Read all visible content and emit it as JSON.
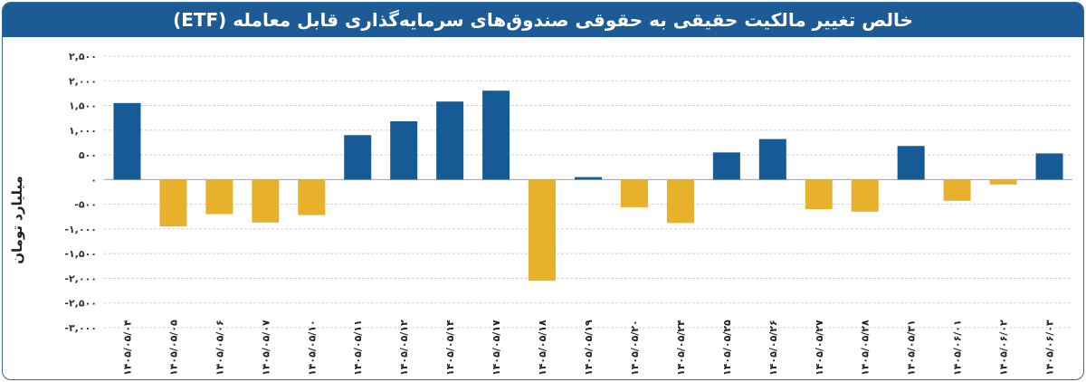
{
  "header": {
    "title": "خالص تغییر مالکیت حقیقی به حقوقی صندوق‌های سرمایه‌گذاری قابل معامله (ETF)"
  },
  "colors": {
    "header_bg": "#1c5b96",
    "positive": "#165b95",
    "negative": "#e8b12c",
    "grid": "#cfd3d8"
  },
  "chart_data": {
    "type": "bar",
    "title": "خالص تغییر مالکیت حقیقی به حقوقی صندوق‌های سرمایه‌گذاری قابل معامله (ETF)",
    "ylabel": "میلیارد تومان",
    "xlabel": "",
    "ylim": [
      -3000,
      2500
    ],
    "yticks": [
      2500,
      2000,
      1500,
      1000,
      500,
      0,
      -500,
      -1000,
      -1500,
      -2000,
      -2500,
      -3000
    ],
    "ytick_labels": [
      "۲,۵۰۰",
      "۲,۰۰۰",
      "۱,۵۰۰",
      "۱,۰۰۰",
      "۵۰۰",
      "۰",
      "-۵۰۰",
      "-۱,۰۰۰",
      "-۱,۵۰۰",
      "-۲,۰۰۰",
      "-۲,۵۰۰",
      "-۳,۰۰۰"
    ],
    "grid": true,
    "legend": "none",
    "categories": [
      "۱۴۰۵/۰۵/۰۴",
      "۱۴۰۵/۰۵/۰۵",
      "۱۴۰۵/۰۵/۰۶",
      "۱۴۰۵/۰۵/۰۷",
      "۱۴۰۵/۰۵/۱۰",
      "۱۴۰۵/۰۵/۱۱",
      "۱۴۰۵/۰۵/۱۲",
      "۱۴۰۵/۰۵/۱۴",
      "۱۴۰۵/۰۵/۱۷",
      "۱۴۰۵/۰۵/۱۸",
      "۱۴۰۵/۰۵/۱۹",
      "۱۴۰۵/۰۵/۲۰",
      "۱۴۰۵/۰۵/۲۴",
      "۱۴۰۵/۰۵/۲۵",
      "۱۴۰۵/۰۵/۲۶",
      "۱۴۰۵/۰۵/۲۷",
      "۱۴۰۵/۰۵/۲۸",
      "۱۴۰۵/۰۵/۳۱",
      "۱۴۰۵/۰۶/۰۱",
      "۱۴۰۵/۰۶/۰۲",
      "۱۴۰۵/۰۶/۰۳"
    ],
    "values": [
      1550,
      -950,
      -700,
      -870,
      -720,
      900,
      1180,
      1580,
      1800,
      -2050,
      50,
      -560,
      -880,
      550,
      820,
      -600,
      -650,
      680,
      -430,
      -100,
      530
    ]
  }
}
